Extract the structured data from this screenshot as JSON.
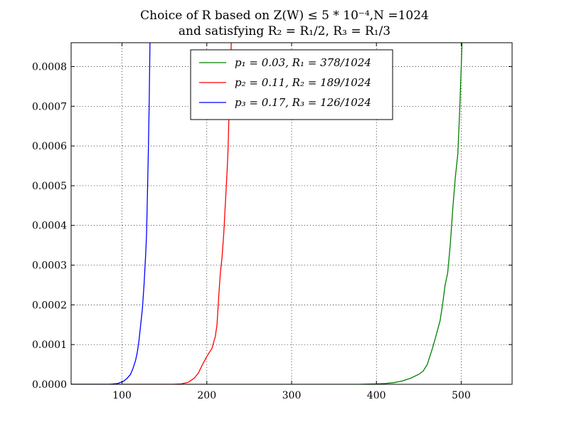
{
  "chart_data": {
    "type": "line",
    "title": "Choice of R based on Z(W) ≤ 5 * 10⁻⁴,N =1024",
    "subtitle": "and satisfying R₂ = R₁/2, R₃ = R₁/3",
    "xlabel": "",
    "ylabel": "",
    "xlim": [
      40,
      560
    ],
    "ylim": [
      0,
      0.00086
    ],
    "x_ticks": [
      100,
      200,
      300,
      400,
      500
    ],
    "x_tick_labels": [
      "100",
      "200",
      "300",
      "400",
      "500"
    ],
    "y_ticks": [
      0,
      0.0001,
      0.0002,
      0.0003,
      0.0004,
      0.0005,
      0.0006,
      0.0007,
      0.0008
    ],
    "y_tick_labels": [
      "0.0000",
      "0.0001",
      "0.0002",
      "0.0003",
      "0.0004",
      "0.0005",
      "0.0006",
      "0.0007",
      "0.0008"
    ],
    "grid": true,
    "legend_position": "top-center",
    "series": [
      {
        "name": "p₁ = 0.03, R₁ = 378/1024",
        "color": "#008000",
        "x": [
          40,
          380,
          400,
          410,
          420,
          430,
          440,
          450,
          455,
          460,
          463,
          466,
          470,
          475,
          478,
          481,
          484,
          487,
          490,
          493,
          496,
          498,
          500,
          501
        ],
        "y": [
          0,
          0,
          1e-06,
          2e-06,
          4e-06,
          8e-06,
          1.5e-05,
          2.5e-05,
          3.3e-05,
          5e-05,
          7e-05,
          9e-05,
          0.00012,
          0.00016,
          0.0002,
          0.00025,
          0.00028,
          0.00035,
          0.00044,
          0.00052,
          0.00058,
          0.00068,
          0.0008,
          0.000865
        ]
      },
      {
        "name": "p₂ = 0.11, R₂ = 189/1024",
        "color": "#ff0000",
        "x": [
          40,
          160,
          170,
          178,
          185,
          190,
          195,
          200,
          203,
          206,
          208,
          210,
          212,
          214,
          216,
          218,
          220,
          222,
          224,
          225,
          227,
          229
        ],
        "y": [
          0,
          0,
          1e-06,
          5e-06,
          1.5e-05,
          2.8e-05,
          5e-05,
          7e-05,
          8e-05,
          9e-05,
          0.000105,
          0.00012,
          0.00015,
          0.00022,
          0.00028,
          0.00032,
          0.00038,
          0.00046,
          0.00054,
          0.00059,
          0.00075,
          0.000865
        ]
      },
      {
        "name": "p₃ = 0.17, R₃ = 126/1024",
        "color": "#0000ff",
        "x": [
          40,
          85,
          95,
          102,
          106,
          110,
          113,
          116,
          118,
          120,
          122,
          124,
          126,
          128,
          129,
          130,
          131,
          132,
          133
        ],
        "y": [
          0,
          0,
          2e-06,
          8e-06,
          1.5e-05,
          2.5e-05,
          4e-05,
          6e-05,
          8e-05,
          0.00011,
          0.00015,
          0.00019,
          0.00025,
          0.00033,
          0.00038,
          0.00048,
          0.00058,
          0.0007,
          0.000865
        ]
      }
    ]
  }
}
